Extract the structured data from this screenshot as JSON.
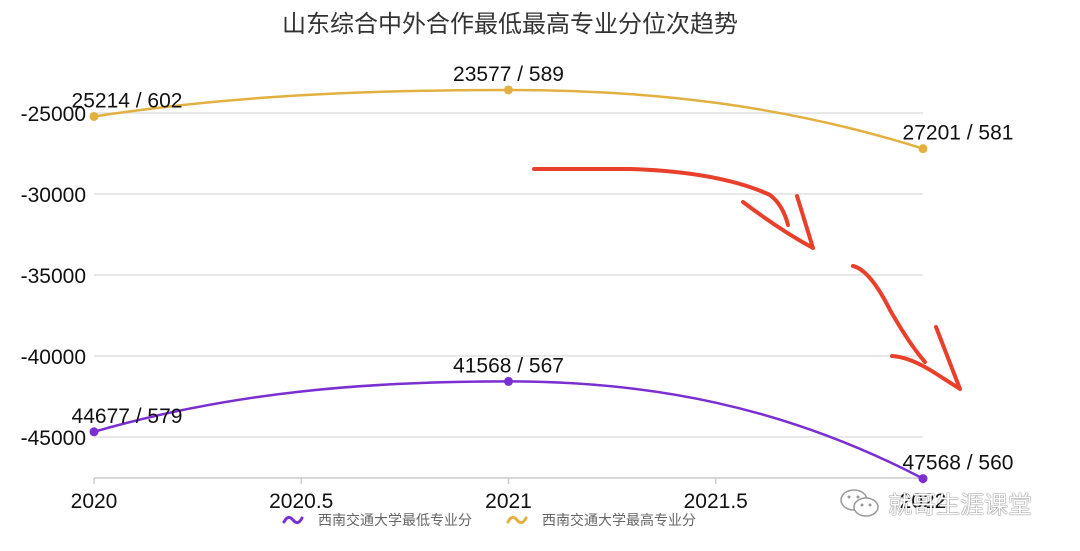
{
  "title": "山东综合中外合作最低最高专业分位次趋势",
  "legend": [
    {
      "label": "西南交通大学最低专业分",
      "color": "#7b2fd0"
    },
    {
      "label": "西南交通大学最高专业分",
      "color": "#e2b040"
    }
  ],
  "watermark": "就哥生涯课堂",
  "annotation": "red hand-drawn downward arrows",
  "chart_data": {
    "type": "line",
    "title": "山东综合中外合作最低最高专业分位次趋势",
    "xlabel": "",
    "ylabel": "",
    "x": [
      2020,
      2021,
      2022
    ],
    "x_ticks": [
      "2020",
      "2020.5",
      "2021",
      "2021.5",
      "2022"
    ],
    "y_ticks": [
      "-25000",
      "-30000",
      "-35000",
      "-40000",
      "-45000"
    ],
    "ylim": [
      -47568,
      -23577
    ],
    "grid": true,
    "legend_position": "bottom",
    "series": [
      {
        "name": "西南交通大学最低专业分",
        "color": "#7b2fd0",
        "values": [
          -44677,
          -41568,
          -47568
        ],
        "labels": [
          "44677 / 579",
          "41568 / 567",
          "47568 / 560"
        ],
        "scores": [
          579,
          567,
          560
        ]
      },
      {
        "name": "西南交通大学最高专业分",
        "color": "#e2b040",
        "values": [
          -25214,
          -23577,
          -27201
        ],
        "labels": [
          "25214 / 602",
          "23577 / 589",
          "27201 / 581"
        ],
        "scores": [
          602,
          589,
          581
        ]
      }
    ]
  }
}
